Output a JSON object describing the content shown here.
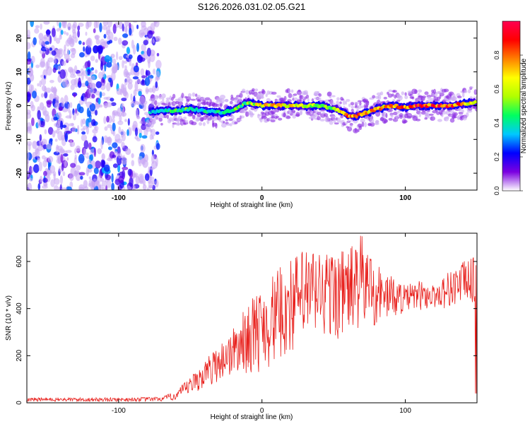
{
  "title": "S126.2026.031.02.05.G21",
  "chart_data": [
    {
      "type": "heatmap",
      "title": "S126.2026.031.02.05.G21",
      "xlabel": "Height of straight line (km)",
      "ylabel": "Frequency (Hz)",
      "xlim": [
        -164,
        150
      ],
      "ylim": [
        -25,
        25
      ],
      "xticks": [
        -100,
        0,
        100
      ],
      "yticks": [
        -20,
        -10,
        0,
        10,
        20
      ],
      "xtick_labels": [
        "-100",
        "0",
        "100"
      ],
      "ytick_labels": [
        "-20",
        "-10",
        "0",
        "10",
        "20"
      ],
      "colorbar": {
        "label": "Normalized spectral amplitude",
        "range": [
          0,
          1
        ],
        "ticks": [
          0.0,
          0.2,
          0.4,
          0.6,
          0.8
        ],
        "tick_labels": [
          "0.0",
          "0.2",
          "0.4",
          "0.6",
          "0.8"
        ],
        "colormap": [
          "#ffffff",
          "#7b00e0",
          "#0000ff",
          "#00c8ff",
          "#00ff60",
          "#b0ff00",
          "#ffff00",
          "#ff8000",
          "#ff0000",
          "#ff0050"
        ]
      },
      "noise_region_x": [
        -164,
        -72
      ],
      "ridge": {
        "x": [
          -78,
          -70,
          -60,
          -50,
          -40,
          -30,
          -20,
          -10,
          0,
          10,
          20,
          30,
          40,
          50,
          55,
          60,
          65,
          70,
          80,
          90,
          100,
          110,
          120,
          130,
          140,
          148
        ],
        "y": [
          -2,
          -1.5,
          -1.5,
          -1,
          -1.5,
          -2,
          -1.5,
          1,
          0,
          0,
          0,
          0,
          0,
          -1,
          -1.5,
          -3,
          -3.2,
          -2.5,
          -1,
          0,
          -0.5,
          0,
          0,
          0,
          0.5,
          1
        ],
        "amplitude": [
          0.35,
          0.45,
          0.5,
          0.5,
          0.45,
          0.45,
          0.5,
          0.55,
          0.75,
          0.8,
          0.75,
          0.65,
          0.6,
          0.55,
          0.7,
          0.85,
          0.85,
          0.8,
          0.75,
          0.8,
          0.85,
          0.95,
          0.95,
          0.9,
          0.85,
          0.7
        ]
      }
    },
    {
      "type": "line",
      "xlabel": "Height of straight line (km)",
      "ylabel": "SNR (10 * v/v)",
      "xlim": [
        -164,
        150
      ],
      "ylim": [
        0,
        720
      ],
      "xticks": [
        -100,
        0,
        100
      ],
      "yticks": [
        0,
        200,
        400,
        600
      ],
      "xtick_labels": [
        "-100",
        "0",
        "100"
      ],
      "ytick_labels": [
        "0",
        "200",
        "400",
        "600"
      ],
      "color": "#e8201c",
      "envelope": {
        "x": [
          -164,
          -100,
          -70,
          -60,
          -50,
          -40,
          -30,
          -20,
          -10,
          0,
          10,
          20,
          30,
          40,
          50,
          60,
          70,
          80,
          90,
          100,
          110,
          120,
          130,
          140,
          148,
          150
        ],
        "base": [
          5,
          5,
          6,
          10,
          30,
          60,
          90,
          110,
          120,
          130,
          160,
          200,
          240,
          260,
          260,
          280,
          300,
          320,
          360,
          380,
          390,
          400,
          400,
          420,
          420,
          420
        ],
        "peak": [
          22,
          22,
          25,
          50,
          110,
          180,
          250,
          320,
          420,
          500,
          560,
          620,
          660,
          660,
          650,
          660,
          720,
          600,
          540,
          500,
          520,
          500,
          560,
          600,
          620,
          620
        ]
      }
    }
  ]
}
